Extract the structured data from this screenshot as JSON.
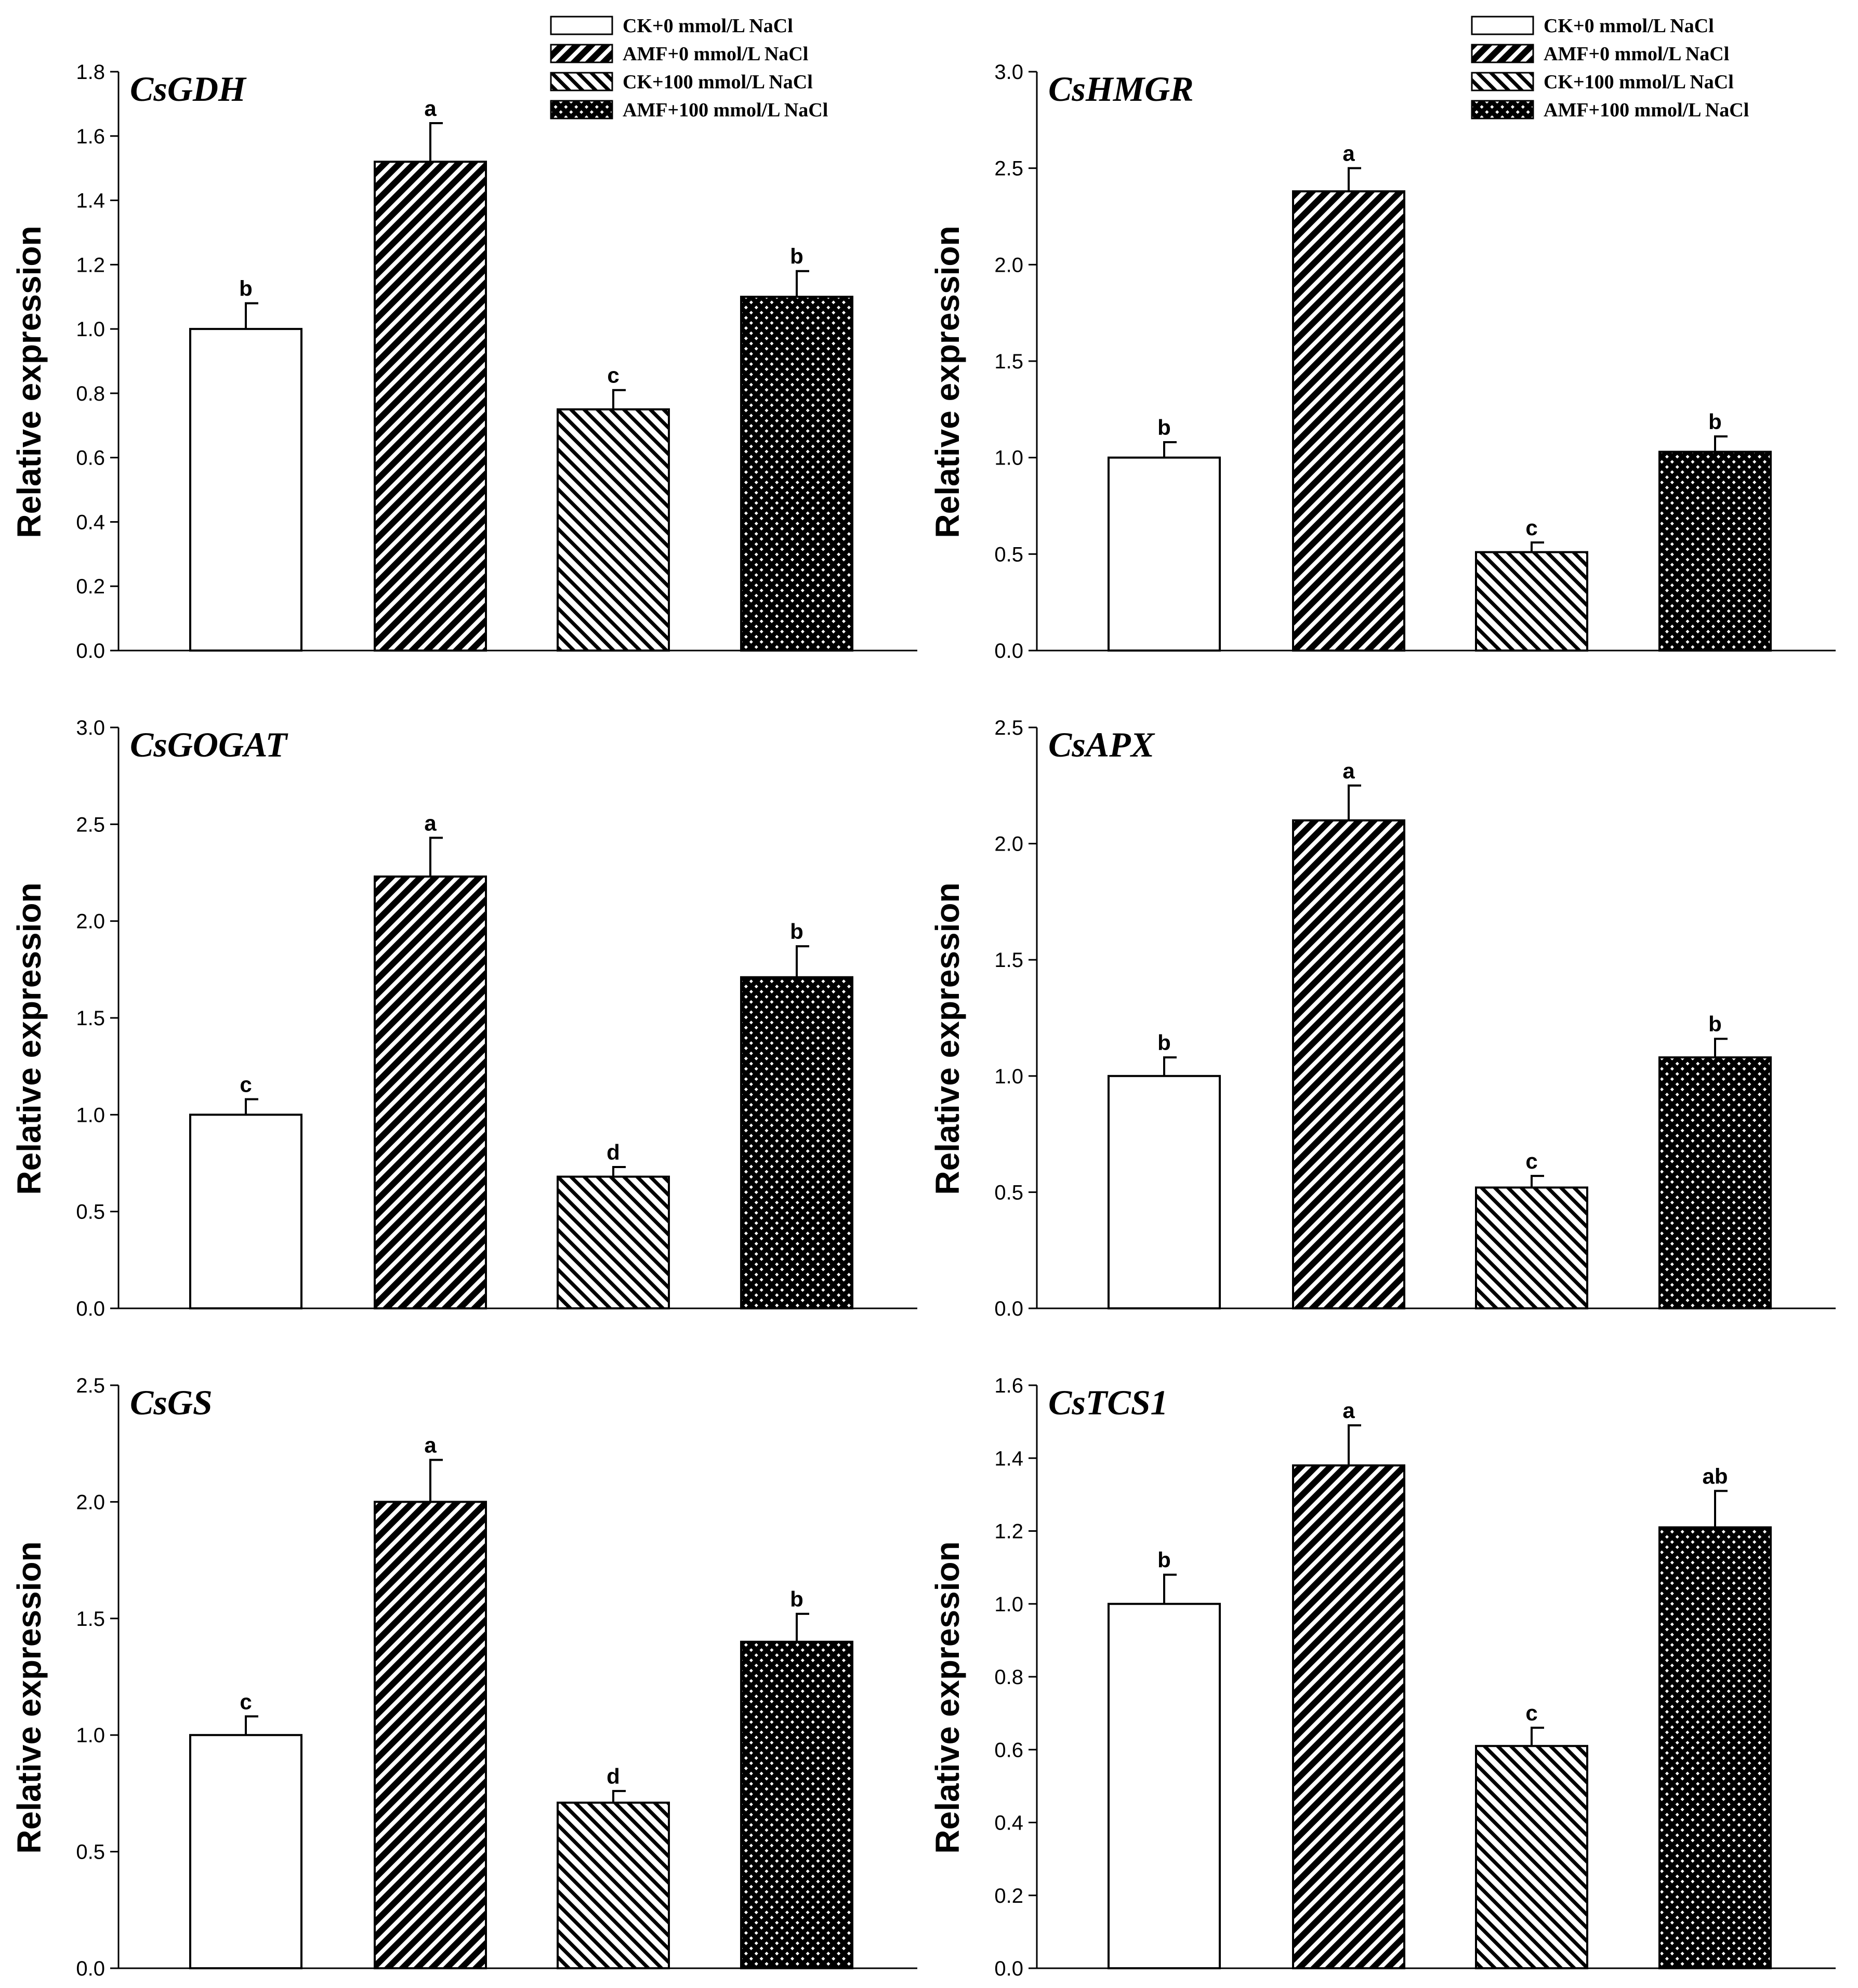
{
  "figure": {
    "legend": [
      "CK+0 mmol/L NaCl",
      "AMF+0 mmol/L NaCl",
      "CK+100 mmol/L NaCl",
      "AMF+100 mmol/L NaCl"
    ],
    "colors": {
      "axis": "#000000",
      "bar_stroke": "#000000",
      "bar_fill": "#ffffff",
      "hatch": "#000000"
    }
  },
  "chart_data": [
    {
      "type": "bar",
      "title": "CsGDH",
      "ylabel": "Relative expression",
      "ylim": [
        0,
        1.8
      ],
      "yticks": [
        "0.0",
        "0.2",
        "0.4",
        "0.6",
        "0.8",
        "1.0",
        "1.2",
        "1.4",
        "1.6",
        "1.8"
      ],
      "categories": [
        "CK+0 mmol/L NaCl",
        "AMF+0 mmol/L NaCl",
        "CK+100 mmol/L NaCl",
        "AMF+100 mmol/L NaCl"
      ],
      "values": [
        1.0,
        1.52,
        0.75,
        1.1
      ],
      "errors": [
        0.08,
        0.12,
        0.06,
        0.08
      ],
      "significance": [
        "b",
        "a",
        "c",
        "b"
      ]
    },
    {
      "type": "bar",
      "title": "CsHMGR",
      "ylabel": "Relative expression",
      "ylim": [
        0,
        3.0
      ],
      "yticks": [
        "0.0",
        "0.5",
        "1.0",
        "1.5",
        "2.0",
        "2.5",
        "3.0"
      ],
      "categories": [
        "CK+0 mmol/L NaCl",
        "AMF+0 mmol/L NaCl",
        "CK+100 mmol/L NaCl",
        "AMF+100 mmol/L NaCl"
      ],
      "values": [
        1.0,
        2.38,
        0.51,
        1.03
      ],
      "errors": [
        0.08,
        0.12,
        0.05,
        0.08
      ],
      "significance": [
        "b",
        "a",
        "c",
        "b"
      ]
    },
    {
      "type": "bar",
      "title": "CsGOGAT",
      "ylabel": "Relative expression",
      "ylim": [
        0,
        3.0
      ],
      "yticks": [
        "0.0",
        "0.5",
        "1.0",
        "1.5",
        "2.0",
        "2.5",
        "3.0"
      ],
      "categories": [
        "CK+0 mmol/L NaCl",
        "AMF+0 mmol/L NaCl",
        "CK+100 mmol/L NaCl",
        "AMF+100 mmol/L NaCl"
      ],
      "values": [
        1.0,
        2.23,
        0.68,
        1.71
      ],
      "errors": [
        0.08,
        0.2,
        0.05,
        0.16
      ],
      "significance": [
        "c",
        "a",
        "d",
        "b"
      ]
    },
    {
      "type": "bar",
      "title": "CsAPX",
      "ylabel": "Relative expression",
      "ylim": [
        0,
        2.5
      ],
      "yticks": [
        "0.0",
        "0.5",
        "1.0",
        "1.5",
        "2.0",
        "2.5"
      ],
      "categories": [
        "CK+0 mmol/L NaCl",
        "AMF+0 mmol/L NaCl",
        "CK+100 mmol/L NaCl",
        "AMF+100 mmol/L NaCl"
      ],
      "values": [
        1.0,
        2.1,
        0.52,
        1.08
      ],
      "errors": [
        0.08,
        0.15,
        0.05,
        0.08
      ],
      "significance": [
        "b",
        "a",
        "c",
        "b"
      ]
    },
    {
      "type": "bar",
      "title": "CsGS",
      "ylabel": "Relative expression",
      "ylim": [
        0,
        2.5
      ],
      "yticks": [
        "0.0",
        "0.5",
        "1.0",
        "1.5",
        "2.0",
        "2.5"
      ],
      "categories": [
        "CK+0 mmol/L NaCl",
        "AMF+0 mmol/L NaCl",
        "CK+100 mmol/L NaCl",
        "AMF+100 mmol/L NaCl"
      ],
      "values": [
        1.0,
        2.0,
        0.71,
        1.4
      ],
      "errors": [
        0.08,
        0.18,
        0.05,
        0.12
      ],
      "significance": [
        "c",
        "a",
        "d",
        "b"
      ]
    },
    {
      "type": "bar",
      "title": "CsTCS1",
      "ylabel": "Relative expression",
      "ylim": [
        0,
        1.6
      ],
      "yticks": [
        "0.0",
        "0.2",
        "0.4",
        "0.6",
        "0.8",
        "1.0",
        "1.2",
        "1.4",
        "1.6"
      ],
      "categories": [
        "CK+0 mmol/L NaCl",
        "AMF+0 mmol/L NaCl",
        "CK+100 mmol/L NaCl",
        "AMF+100 mmol/L NaCl"
      ],
      "values": [
        1.0,
        1.38,
        0.61,
        1.21
      ],
      "errors": [
        0.08,
        0.11,
        0.05,
        0.1
      ],
      "significance": [
        "b",
        "a",
        "c",
        "ab"
      ]
    }
  ]
}
